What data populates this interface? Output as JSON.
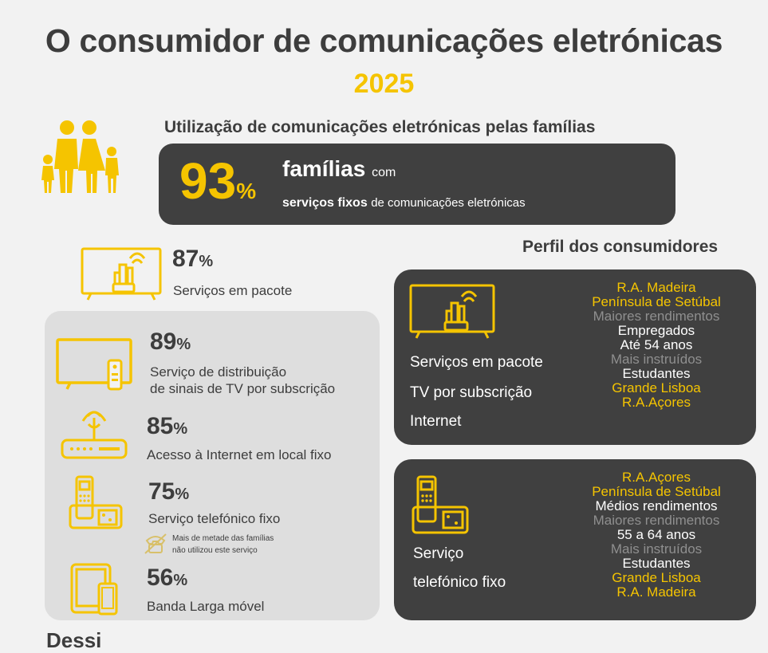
{
  "header": {
    "title": "O consumidor de comunicações eletrónicas",
    "year": "2025",
    "subtitle": "Utilização de comunicações eletrónicas pelas famílias"
  },
  "banner": {
    "value": "93",
    "pct": "%",
    "families": "famílias",
    "with": "com",
    "fixed_services": "serviços fixos",
    "fixed_rest": "de comunicações eletrónicas"
  },
  "stats": {
    "bundle": {
      "value": "87",
      "pct": "%",
      "label": "Serviços em pacote",
      "icon": "tv-router-icon"
    },
    "tv": {
      "value": "89",
      "pct": "%",
      "label_line1": "Serviço de distribuição",
      "label_line2": "de sinais de TV por subscrição",
      "icon": "tv-remote-icon"
    },
    "internet": {
      "value": "85",
      "pct": "%",
      "label": "Acesso à Internet em local fixo",
      "icon": "router-icon"
    },
    "phone": {
      "value": "75",
      "pct": "%",
      "label": "Serviço telefónico fixo",
      "note_line1": "Mais de metade das famílias",
      "note_line2": "não utilizou este serviço",
      "icon": "cordless-phone-icon"
    },
    "mobile": {
      "value": "56",
      "pct": "%",
      "label": "Banda Larga móvel",
      "icon": "tablet-phone-icon"
    }
  },
  "profiles": {
    "title": "Perfil dos consumidores",
    "bundle_box": {
      "labels": [
        "Serviços em pacote",
        "TV por subscrição",
        "Internet"
      ],
      "items": [
        {
          "text": "R.A. Madeira",
          "color": "#f5c400"
        },
        {
          "text": "Península de Setúbal",
          "color": "#f5c400"
        },
        {
          "text": "Maiores rendimentos",
          "color": "#8f8f8f"
        },
        {
          "text": "Empregados",
          "color": "#ffffff"
        },
        {
          "text": "Até 54 anos",
          "color": "#ffffff"
        },
        {
          "text": "Mais instruídos",
          "color": "#8f8f8f"
        },
        {
          "text": "Estudantes",
          "color": "#ffffff"
        },
        {
          "text": "Grande Lisboa",
          "color": "#f5c400"
        },
        {
          "text": "R.A.Açores",
          "color": "#f5c400"
        }
      ]
    },
    "phone_box": {
      "labels": [
        "Serviço",
        "telefónico fixo"
      ],
      "items": [
        {
          "text": "R.A.Açores",
          "color": "#f5c400"
        },
        {
          "text": "Península de Setúbal",
          "color": "#f5c400"
        },
        {
          "text": "Médios rendimentos",
          "color": "#ffffff"
        },
        {
          "text": "Maiores rendimentos",
          "color": "#8f8f8f"
        },
        {
          "text": "55 a 64 anos",
          "color": "#ffffff"
        },
        {
          "text": "Mais instruídos",
          "color": "#8f8f8f"
        },
        {
          "text": "Estudantes",
          "color": "#ffffff"
        },
        {
          "text": "Grande Lisboa",
          "color": "#f5c400"
        },
        {
          "text": "R.A. Madeira",
          "color": "#f5c400"
        }
      ]
    }
  },
  "footer": {
    "cut_text": "Dessi"
  },
  "colors": {
    "accent": "#f5c400",
    "dark": "#404040",
    "panel": "#dedede",
    "background": "#f2f2f2"
  }
}
